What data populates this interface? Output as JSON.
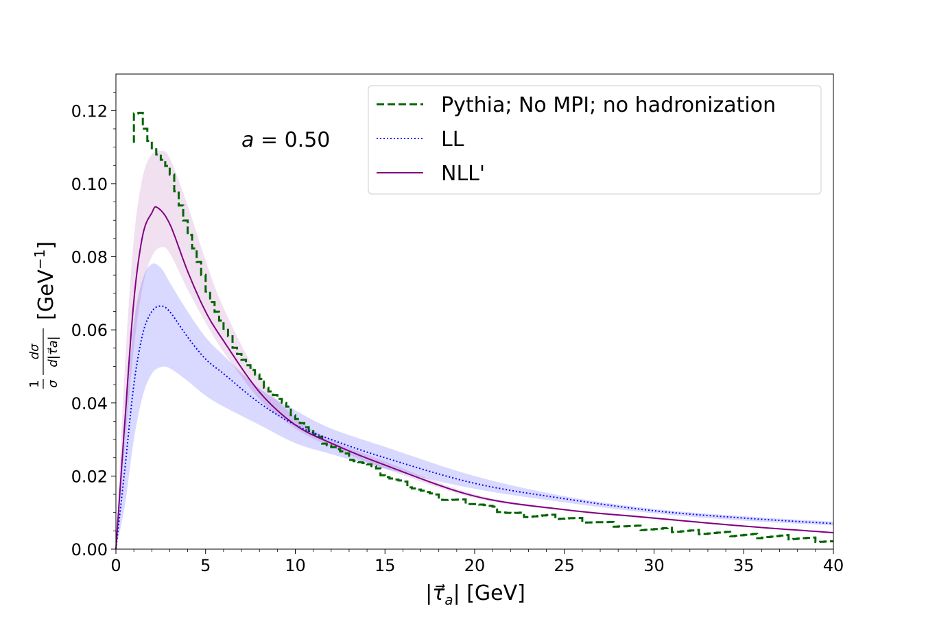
{
  "chart_data": {
    "type": "line",
    "title": "",
    "xlabel": "|τ⃗a| [GeV]",
    "ylabel": "1/σ dσ/d|τ⃗a| [GeV⁻¹]",
    "xlabel_parts": {
      "open": "|",
      "tau": "τ⃗",
      "sub": "a",
      "close": "| [GeV]"
    },
    "ylabel_parts": {
      "num1": "1",
      "den1": "σ",
      "num2": "dσ",
      "den2": "d|τ⃗a|",
      "unit": "[GeV",
      "exp": "−1",
      "unit_close": "]"
    },
    "xlim": [
      0,
      40
    ],
    "ylim": [
      0.0,
      0.13
    ],
    "xticks": [
      0,
      5,
      10,
      15,
      20,
      25,
      30,
      35,
      40
    ],
    "xtick_labels": [
      "0",
      "5",
      "10",
      "15",
      "20",
      "25",
      "30",
      "35",
      "40"
    ],
    "yticks": [
      0.0,
      0.02,
      0.04,
      0.06,
      0.08,
      0.1,
      0.12
    ],
    "ytick_labels": [
      "0.00",
      "0.02",
      "0.04",
      "0.06",
      "0.08",
      "0.10",
      "0.12"
    ],
    "annotation": {
      "var": "a",
      "eq": " = 0.50"
    },
    "legend": {
      "position": "top-right",
      "entries": [
        {
          "label": "Pythia; No MPI; no hadronization",
          "style": "dashed",
          "color": "#006400"
        },
        {
          "label": "LL",
          "style": "dotted",
          "color": "#0000ff"
        },
        {
          "label": "NLL'",
          "style": "solid",
          "color": "#800080"
        }
      ]
    },
    "series": [
      {
        "name": "Pythia; No MPI; no hadronization",
        "kind": "step",
        "color": "#006400",
        "bin_width": 0.25,
        "bin_start": 1.0,
        "x": [
          1,
          2,
          3,
          4,
          5,
          6,
          7,
          8,
          9,
          10,
          11,
          12,
          13,
          14,
          15,
          16,
          17,
          18,
          20,
          22,
          25,
          28,
          30,
          33,
          35,
          38,
          40
        ],
        "y": [
          0.119,
          0.11,
          0.102,
          0.086,
          0.071,
          0.06,
          0.052,
          0.046,
          0.041,
          0.036,
          0.031,
          0.028,
          0.025,
          0.023,
          0.02,
          0.018,
          0.016,
          0.014,
          0.0125,
          0.0098,
          0.0085,
          0.0065,
          0.0055,
          0.0045,
          0.0038,
          0.003,
          0.002
        ]
      },
      {
        "name": "LL",
        "color": "#0000ff",
        "x": [
          0,
          0.5,
          1,
          1.5,
          2,
          2.5,
          3,
          4,
          5,
          6,
          8,
          10,
          12,
          15,
          20,
          25,
          30,
          35,
          40
        ],
        "y": [
          0,
          0.022,
          0.045,
          0.059,
          0.065,
          0.0665,
          0.065,
          0.058,
          0.052,
          0.048,
          0.04,
          0.034,
          0.03,
          0.025,
          0.018,
          0.0138,
          0.0105,
          0.0085,
          0.007
        ]
      },
      {
        "name": "NLL'",
        "color": "#800080",
        "x": [
          0,
          0.5,
          1,
          1.5,
          2,
          2.3,
          3,
          4,
          5,
          6,
          8,
          10,
          12,
          15,
          20,
          25,
          30,
          35,
          40
        ],
        "y": [
          0,
          0.035,
          0.068,
          0.086,
          0.092,
          0.0935,
          0.089,
          0.076,
          0.065,
          0.057,
          0.043,
          0.034,
          0.029,
          0.023,
          0.0145,
          0.0108,
          0.0085,
          0.0063,
          0.0045
        ]
      }
    ],
    "bands": [
      {
        "name": "LL uncertainty",
        "color": "#0000ff",
        "x": [
          0,
          0.5,
          1,
          1.5,
          2,
          2.5,
          3,
          4,
          5,
          6,
          8,
          10,
          12,
          15,
          20,
          25,
          30,
          35,
          40
        ],
        "low": [
          0,
          0.012,
          0.03,
          0.042,
          0.048,
          0.0498,
          0.0495,
          0.046,
          0.042,
          0.039,
          0.034,
          0.029,
          0.026,
          0.022,
          0.0165,
          0.0128,
          0.0098,
          0.0078,
          0.0065
        ],
        "high": [
          0,
          0.035,
          0.062,
          0.074,
          0.078,
          0.077,
          0.073,
          0.065,
          0.058,
          0.053,
          0.044,
          0.038,
          0.033,
          0.028,
          0.02,
          0.0145,
          0.011,
          0.009,
          0.0075
        ]
      },
      {
        "name": "NLL' uncertainty",
        "color": "#800080",
        "x": [
          0,
          0.5,
          1,
          1.5,
          2,
          2.5,
          3,
          4,
          5,
          6,
          8,
          10,
          12,
          15,
          20,
          25,
          30,
          35,
          40
        ],
        "low": [
          0,
          0.028,
          0.055,
          0.072,
          0.08,
          0.0826,
          0.081,
          0.071,
          0.062,
          0.054,
          0.041,
          0.033,
          0.028,
          0.022,
          0.014,
          0.0105,
          0.0082,
          0.0061,
          0.0043
        ],
        "high": [
          0,
          0.05,
          0.085,
          0.102,
          0.108,
          0.109,
          0.107,
          0.094,
          0.079,
          0.066,
          0.047,
          0.036,
          0.03,
          0.024,
          0.015,
          0.011,
          0.0088,
          0.0065,
          0.0047
        ]
      }
    ]
  }
}
